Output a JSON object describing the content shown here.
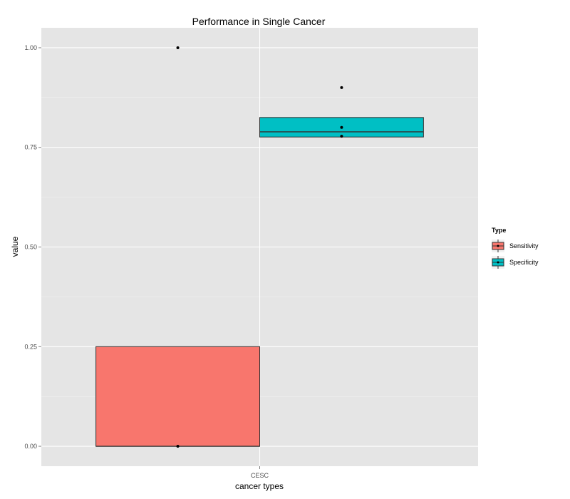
{
  "chart_data": {
    "type": "boxplot",
    "title": "Performance in Single Cancer",
    "xlabel": "cancer types",
    "ylabel": "value",
    "categories": [
      "CESC"
    ],
    "ylim": [
      -0.05,
      1.05
    ],
    "yticks": [
      0.0,
      0.25,
      0.5,
      0.75,
      1.0
    ],
    "ytick_labels": [
      "0.00",
      "0.25",
      "0.50",
      "0.75",
      "1.00"
    ],
    "grid": true,
    "legend": {
      "title": "Type",
      "placement": "right",
      "entries": [
        {
          "name": "Sensitivity",
          "color": "#F8766D"
        },
        {
          "name": "Specificity",
          "color": "#00BFC4"
        }
      ]
    },
    "series": [
      {
        "name": "Sensitivity",
        "color": "#F8766D",
        "box": {
          "q1": 0.0,
          "median": 0.0,
          "q3": 0.25,
          "whisker_low": 0.0,
          "whisker_high": 0.25
        },
        "points": [
          1.0,
          0.0
        ]
      },
      {
        "name": "Specificity",
        "color": "#00BFC4",
        "box": {
          "q1": 0.776,
          "median": 0.789,
          "q3": 0.825,
          "whisker_low": 0.776,
          "whisker_high": 0.825
        },
        "points": [
          0.9,
          0.8,
          0.778
        ]
      }
    ]
  }
}
